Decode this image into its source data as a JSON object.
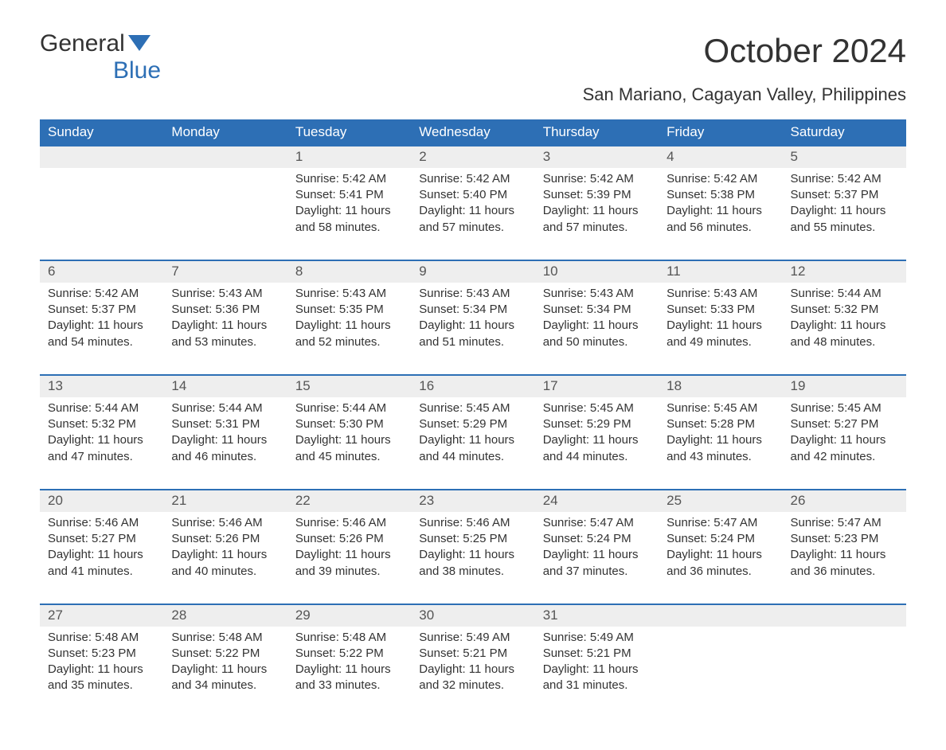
{
  "logo": {
    "text_general": "General",
    "text_blue": "Blue"
  },
  "title": "October 2024",
  "subtitle": "San Mariano, Cagayan Valley, Philippines",
  "colors": {
    "header_bg": "#2d6fb5",
    "header_text": "#ffffff",
    "day_number_bg": "#eeeeee",
    "day_number_text": "#555555",
    "body_text": "#333333",
    "row_divider": "#2d6fb5",
    "page_bg": "#ffffff",
    "logo_blue": "#2d6fb5"
  },
  "day_headers": [
    "Sunday",
    "Monday",
    "Tuesday",
    "Wednesday",
    "Thursday",
    "Friday",
    "Saturday"
  ],
  "weeks": [
    [
      null,
      null,
      {
        "n": "1",
        "sunrise": "Sunrise: 5:42 AM",
        "sunset": "Sunset: 5:41 PM",
        "daylight": "Daylight: 11 hours and 58 minutes."
      },
      {
        "n": "2",
        "sunrise": "Sunrise: 5:42 AM",
        "sunset": "Sunset: 5:40 PM",
        "daylight": "Daylight: 11 hours and 57 minutes."
      },
      {
        "n": "3",
        "sunrise": "Sunrise: 5:42 AM",
        "sunset": "Sunset: 5:39 PM",
        "daylight": "Daylight: 11 hours and 57 minutes."
      },
      {
        "n": "4",
        "sunrise": "Sunrise: 5:42 AM",
        "sunset": "Sunset: 5:38 PM",
        "daylight": "Daylight: 11 hours and 56 minutes."
      },
      {
        "n": "5",
        "sunrise": "Sunrise: 5:42 AM",
        "sunset": "Sunset: 5:37 PM",
        "daylight": "Daylight: 11 hours and 55 minutes."
      }
    ],
    [
      {
        "n": "6",
        "sunrise": "Sunrise: 5:42 AM",
        "sunset": "Sunset: 5:37 PM",
        "daylight": "Daylight: 11 hours and 54 minutes."
      },
      {
        "n": "7",
        "sunrise": "Sunrise: 5:43 AM",
        "sunset": "Sunset: 5:36 PM",
        "daylight": "Daylight: 11 hours and 53 minutes."
      },
      {
        "n": "8",
        "sunrise": "Sunrise: 5:43 AM",
        "sunset": "Sunset: 5:35 PM",
        "daylight": "Daylight: 11 hours and 52 minutes."
      },
      {
        "n": "9",
        "sunrise": "Sunrise: 5:43 AM",
        "sunset": "Sunset: 5:34 PM",
        "daylight": "Daylight: 11 hours and 51 minutes."
      },
      {
        "n": "10",
        "sunrise": "Sunrise: 5:43 AM",
        "sunset": "Sunset: 5:34 PM",
        "daylight": "Daylight: 11 hours and 50 minutes."
      },
      {
        "n": "11",
        "sunrise": "Sunrise: 5:43 AM",
        "sunset": "Sunset: 5:33 PM",
        "daylight": "Daylight: 11 hours and 49 minutes."
      },
      {
        "n": "12",
        "sunrise": "Sunrise: 5:44 AM",
        "sunset": "Sunset: 5:32 PM",
        "daylight": "Daylight: 11 hours and 48 minutes."
      }
    ],
    [
      {
        "n": "13",
        "sunrise": "Sunrise: 5:44 AM",
        "sunset": "Sunset: 5:32 PM",
        "daylight": "Daylight: 11 hours and 47 minutes."
      },
      {
        "n": "14",
        "sunrise": "Sunrise: 5:44 AM",
        "sunset": "Sunset: 5:31 PM",
        "daylight": "Daylight: 11 hours and 46 minutes."
      },
      {
        "n": "15",
        "sunrise": "Sunrise: 5:44 AM",
        "sunset": "Sunset: 5:30 PM",
        "daylight": "Daylight: 11 hours and 45 minutes."
      },
      {
        "n": "16",
        "sunrise": "Sunrise: 5:45 AM",
        "sunset": "Sunset: 5:29 PM",
        "daylight": "Daylight: 11 hours and 44 minutes."
      },
      {
        "n": "17",
        "sunrise": "Sunrise: 5:45 AM",
        "sunset": "Sunset: 5:29 PM",
        "daylight": "Daylight: 11 hours and 44 minutes."
      },
      {
        "n": "18",
        "sunrise": "Sunrise: 5:45 AM",
        "sunset": "Sunset: 5:28 PM",
        "daylight": "Daylight: 11 hours and 43 minutes."
      },
      {
        "n": "19",
        "sunrise": "Sunrise: 5:45 AM",
        "sunset": "Sunset: 5:27 PM",
        "daylight": "Daylight: 11 hours and 42 minutes."
      }
    ],
    [
      {
        "n": "20",
        "sunrise": "Sunrise: 5:46 AM",
        "sunset": "Sunset: 5:27 PM",
        "daylight": "Daylight: 11 hours and 41 minutes."
      },
      {
        "n": "21",
        "sunrise": "Sunrise: 5:46 AM",
        "sunset": "Sunset: 5:26 PM",
        "daylight": "Daylight: 11 hours and 40 minutes."
      },
      {
        "n": "22",
        "sunrise": "Sunrise: 5:46 AM",
        "sunset": "Sunset: 5:26 PM",
        "daylight": "Daylight: 11 hours and 39 minutes."
      },
      {
        "n": "23",
        "sunrise": "Sunrise: 5:46 AM",
        "sunset": "Sunset: 5:25 PM",
        "daylight": "Daylight: 11 hours and 38 minutes."
      },
      {
        "n": "24",
        "sunrise": "Sunrise: 5:47 AM",
        "sunset": "Sunset: 5:24 PM",
        "daylight": "Daylight: 11 hours and 37 minutes."
      },
      {
        "n": "25",
        "sunrise": "Sunrise: 5:47 AM",
        "sunset": "Sunset: 5:24 PM",
        "daylight": "Daylight: 11 hours and 36 minutes."
      },
      {
        "n": "26",
        "sunrise": "Sunrise: 5:47 AM",
        "sunset": "Sunset: 5:23 PM",
        "daylight": "Daylight: 11 hours and 36 minutes."
      }
    ],
    [
      {
        "n": "27",
        "sunrise": "Sunrise: 5:48 AM",
        "sunset": "Sunset: 5:23 PM",
        "daylight": "Daylight: 11 hours and 35 minutes."
      },
      {
        "n": "28",
        "sunrise": "Sunrise: 5:48 AM",
        "sunset": "Sunset: 5:22 PM",
        "daylight": "Daylight: 11 hours and 34 minutes."
      },
      {
        "n": "29",
        "sunrise": "Sunrise: 5:48 AM",
        "sunset": "Sunset: 5:22 PM",
        "daylight": "Daylight: 11 hours and 33 minutes."
      },
      {
        "n": "30",
        "sunrise": "Sunrise: 5:49 AM",
        "sunset": "Sunset: 5:21 PM",
        "daylight": "Daylight: 11 hours and 32 minutes."
      },
      {
        "n": "31",
        "sunrise": "Sunrise: 5:49 AM",
        "sunset": "Sunset: 5:21 PM",
        "daylight": "Daylight: 11 hours and 31 minutes."
      },
      null,
      null
    ]
  ]
}
